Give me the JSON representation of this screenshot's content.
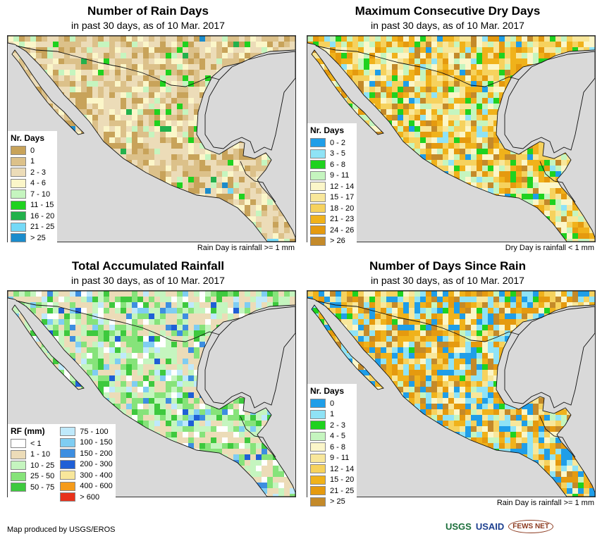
{
  "panels": [
    {
      "id": "rain_days",
      "title": "Number of Rain Days",
      "subtitle": "in past 30 days, as of 10 Mar. 2017",
      "footnote": "Rain Day is rainfall >= 1 mm",
      "legend": {
        "title": "Nr. Days",
        "items": [
          {
            "label": "0",
            "color": "#c8a35a"
          },
          {
            "label": "1",
            "color": "#dcc18a"
          },
          {
            "label": "2 - 3",
            "color": "#ecdcb8"
          },
          {
            "label": "4 - 6",
            "color": "#fbf6c9"
          },
          {
            "label": "7 - 10",
            "color": "#c5f5bf"
          },
          {
            "label": "11 - 15",
            "color": "#1fd21f"
          },
          {
            "label": "16 - 20",
            "color": "#22b14c"
          },
          {
            "label": "21 - 25",
            "color": "#74d9f7"
          },
          {
            "label": "> 25",
            "color": "#1b8ccc"
          }
        ]
      }
    },
    {
      "id": "max_dry_days",
      "title": "Maximum Consecutive Dry Days",
      "subtitle": "in past 30 days, as of 10 Mar. 2017",
      "footnote": "Dry Day is rainfall < 1 mm",
      "legend": {
        "title": "Nr. Days",
        "items": [
          {
            "label": "0 - 2",
            "color": "#1f9ee8"
          },
          {
            "label": "3 - 5",
            "color": "#8fe3f6"
          },
          {
            "label": "6 - 8",
            "color": "#1fd21f"
          },
          {
            "label": "9 - 11",
            "color": "#c5f5bf"
          },
          {
            "label": "12 - 14",
            "color": "#fbf6c9"
          },
          {
            "label": "15 - 17",
            "color": "#f8e79b"
          },
          {
            "label": "18 - 20",
            "color": "#f6d25e"
          },
          {
            "label": "21 - 23",
            "color": "#f0b21b"
          },
          {
            "label": "24 - 26",
            "color": "#e59a0f"
          },
          {
            "label": "> 26",
            "color": "#c48a2a"
          }
        ]
      }
    },
    {
      "id": "total_rainfall",
      "title": "Total Accumulated Rainfall",
      "subtitle": "in past 30 days, as of 10 Mar. 2017",
      "footnote": "",
      "legend": {
        "title": "RF (mm)",
        "items": [
          {
            "label": "< 1",
            "color": "#ffffff"
          },
          {
            "label": "1 - 10",
            "color": "#ecdcb8"
          },
          {
            "label": "10 - 25",
            "color": "#c5f5bf"
          },
          {
            "label": "25 - 50",
            "color": "#86e37a"
          },
          {
            "label": "50 - 75",
            "color": "#3ec93e"
          },
          {
            "label": "75 - 100",
            "color": "#bfe9fb"
          },
          {
            "label": "100 - 150",
            "color": "#7fcdf2"
          },
          {
            "label": "150 - 200",
            "color": "#3d8ee0"
          },
          {
            "label": "200 - 300",
            "color": "#1f5fd6"
          },
          {
            "label": "300 - 400",
            "color": "#f8e79b"
          },
          {
            "label": "400 - 600",
            "color": "#f59b1b"
          },
          {
            "label": "> 600",
            "color": "#e8321b"
          }
        ]
      }
    },
    {
      "id": "days_since_rain",
      "title": "Number of Days Since Rain",
      "subtitle": "in past 30 days, as of 10 Mar. 2017",
      "footnote": "Rain Day is rainfall >= 1 mm",
      "legend": {
        "title": "Nr. Days",
        "items": [
          {
            "label": "0",
            "color": "#1f9ee8"
          },
          {
            "label": "1",
            "color": "#8fe3f6"
          },
          {
            "label": "2 - 3",
            "color": "#1fd21f"
          },
          {
            "label": "4 - 5",
            "color": "#c5f5bf"
          },
          {
            "label": "6 - 8",
            "color": "#fbf6c9"
          },
          {
            "label": "9 - 11",
            "color": "#f8e79b"
          },
          {
            "label": "12 - 14",
            "color": "#f6d25e"
          },
          {
            "label": "15 - 20",
            "color": "#f0b21b"
          },
          {
            "label": "21 - 25",
            "color": "#e59a0f"
          },
          {
            "label": "> 25",
            "color": "#c48a2a"
          }
        ]
      }
    }
  ],
  "ocean_color": "#d9d9d9",
  "credit": "Map produced by USGS/EROS",
  "logos": [
    "USGS",
    "USAID",
    "FEWS NET"
  ]
}
